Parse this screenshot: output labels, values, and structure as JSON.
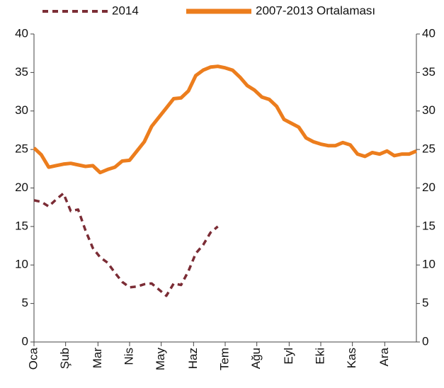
{
  "chart_data": {
    "type": "line",
    "x": [
      0,
      1,
      2,
      3,
      4,
      5,
      6,
      7,
      8,
      9,
      10,
      11,
      12,
      13,
      14,
      15,
      16,
      17,
      18,
      19,
      20,
      21,
      22,
      23,
      24,
      25,
      26,
      27,
      28,
      29,
      30,
      31,
      32,
      33,
      34,
      35,
      36,
      37,
      38,
      39,
      40,
      41,
      42,
      43,
      44,
      45,
      46,
      47,
      48,
      49,
      50,
      51,
      52
    ],
    "xlim": [
      0,
      52
    ],
    "xticks": [
      {
        "value": 0,
        "label": "Oca"
      },
      {
        "value": 4.3,
        "label": "Şub"
      },
      {
        "value": 8.7,
        "label": "Mar"
      },
      {
        "value": 13,
        "label": "Nis"
      },
      {
        "value": 17.3,
        "label": "May"
      },
      {
        "value": 21.7,
        "label": "Haz"
      },
      {
        "value": 26,
        "label": "Tem"
      },
      {
        "value": 30.3,
        "label": "Ağu"
      },
      {
        "value": 34.7,
        "label": "Eyl"
      },
      {
        "value": 39,
        "label": "Eki"
      },
      {
        "value": 43.3,
        "label": "Kas"
      },
      {
        "value": 47.7,
        "label": "Ara"
      }
    ],
    "ylim": [
      0,
      40
    ],
    "yticks": [
      0,
      5,
      10,
      15,
      20,
      25,
      30,
      35,
      40
    ],
    "y2lim": [
      0,
      40
    ],
    "y2ticks": [
      0,
      5,
      10,
      15,
      20,
      25,
      30,
      35,
      40
    ],
    "series": [
      {
        "name": "2014",
        "color": "#7b2c35",
        "dashed": true,
        "values": [
          18.4,
          18.2,
          17.6,
          18.5,
          19.3,
          17.0,
          17.2,
          14.5,
          12.2,
          11.0,
          10.3,
          9.0,
          7.8,
          7.1,
          7.2,
          7.5,
          7.6,
          6.8,
          6.0,
          7.6,
          7.4,
          9.2,
          11.5,
          12.6,
          14.2,
          15.0,
          null,
          null,
          null,
          null,
          null,
          null,
          null,
          null,
          null,
          null,
          null,
          null,
          null,
          null,
          null,
          null,
          null,
          null,
          null,
          null,
          null,
          null,
          null,
          null,
          null,
          null,
          null
        ]
      },
      {
        "name": "2007-2013 Ortalaması",
        "color": "#ec7d1d",
        "dashed": false,
        "values": [
          25.2,
          24.3,
          22.7,
          22.9,
          23.1,
          23.2,
          23.0,
          22.8,
          22.9,
          22.0,
          22.4,
          22.7,
          23.5,
          23.6,
          24.8,
          26.0,
          28.0,
          29.2,
          30.4,
          31.6,
          31.7,
          32.6,
          34.6,
          35.3,
          35.7,
          35.8,
          35.6,
          35.3,
          34.4,
          33.3,
          32.7,
          31.8,
          31.5,
          30.6,
          28.9,
          28.4,
          27.9,
          26.5,
          26.0,
          25.7,
          25.5,
          25.5,
          25.9,
          25.6,
          24.4,
          24.1,
          24.6,
          24.4,
          24.8,
          24.2,
          24.4,
          24.4,
          24.8
        ]
      }
    ]
  }
}
